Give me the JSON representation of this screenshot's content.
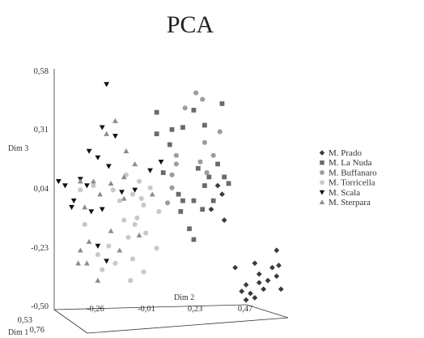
{
  "chart_data": {
    "type": "scatter",
    "title": "PCA",
    "axes": {
      "x": {
        "label": "Dim 2",
        "ticks": [
          "-0,26",
          "-0,01",
          "0,23",
          "0,47"
        ],
        "range": [
          -0.42,
          0.66
        ]
      },
      "y": {
        "label": "Dim 3",
        "ticks": [
          "0,58",
          "0,31",
          "0,04",
          "-0,23",
          "-0,50"
        ],
        "range": [
          -0.5,
          0.62
        ]
      },
      "z": {
        "label": "Dim 1",
        "ticks": [
          "0,53",
          "0,76"
        ]
      }
    },
    "legend_position": "right",
    "grid": false,
    "series": [
      {
        "name": "M. Prado",
        "marker": "diamond",
        "color": "#3a3a3a",
        "points": [
          [
            0.5,
            -0.3
          ],
          [
            0.58,
            -0.32
          ],
          [
            0.52,
            -0.35
          ],
          [
            0.46,
            -0.4
          ],
          [
            0.56,
            -0.38
          ],
          [
            0.6,
            -0.36
          ],
          [
            0.54,
            -0.42
          ],
          [
            0.48,
            -0.44
          ],
          [
            0.61,
            -0.31
          ],
          [
            0.5,
            -0.46
          ],
          [
            0.62,
            -0.42
          ],
          [
            0.44,
            -0.43
          ],
          [
            0.41,
            -0.32
          ],
          [
            0.52,
            -0.39
          ],
          [
            0.35,
            0.02
          ],
          [
            0.3,
            -0.05
          ],
          [
            0.36,
            -0.1
          ],
          [
            0.33,
            0.06
          ],
          [
            0.6,
            -0.24
          ],
          [
            0.46,
            -0.47
          ]
        ]
      },
      {
        "name": "M. La Nuda",
        "marker": "square",
        "color": "#6a6a6a",
        "points": [
          [
            0.05,
            0.4
          ],
          [
            0.05,
            0.3
          ],
          [
            0.08,
            0.12
          ],
          [
            0.11,
            0.25
          ],
          [
            0.12,
            0.32
          ],
          [
            0.17,
            0.33
          ],
          [
            0.22,
            0.41
          ],
          [
            0.27,
            0.34
          ],
          [
            0.35,
            0.44
          ],
          [
            0.33,
            0.16
          ],
          [
            0.29,
            0.1
          ],
          [
            0.24,
            0.14
          ],
          [
            0.27,
            0.06
          ],
          [
            0.22,
            -0.01
          ],
          [
            0.17,
            -0.01
          ],
          [
            0.15,
            0.02
          ],
          [
            0.16,
            -0.06
          ],
          [
            0.2,
            -0.14
          ],
          [
            0.22,
            -0.19
          ],
          [
            0.26,
            -0.05
          ],
          [
            0.31,
            -0.01
          ],
          [
            0.36,
            0.1
          ],
          [
            0.38,
            0.07
          ]
        ]
      },
      {
        "name": "M. Buffanaro",
        "marker": "circle",
        "color": "#9c9c9c",
        "points": [
          [
            0.23,
            0.49
          ],
          [
            0.26,
            0.46
          ],
          [
            0.18,
            0.42
          ],
          [
            0.27,
            0.26
          ],
          [
            0.14,
            0.2
          ],
          [
            0.34,
            0.31
          ],
          [
            0.25,
            0.17
          ],
          [
            0.12,
            0.05
          ],
          [
            0.1,
            -0.02
          ],
          [
            0.12,
            0.11
          ],
          [
            0.14,
            0.16
          ],
          [
            0.31,
            0.2
          ],
          [
            0.28,
            0.12
          ]
        ]
      },
      {
        "name": "M. Torricella",
        "marker": "circle",
        "color": "#c8c8c8",
        "points": [
          [
            0.02,
            0.05
          ],
          [
            -0.03,
            0.08
          ],
          [
            -0.06,
            0.02
          ],
          [
            -0.01,
            -0.03
          ],
          [
            -0.12,
            -0.01
          ],
          [
            -0.15,
            0.04
          ],
          [
            -0.1,
            -0.1
          ],
          [
            -0.05,
            -0.12
          ],
          [
            0.0,
            -0.16
          ],
          [
            -0.08,
            -0.18
          ],
          [
            -0.17,
            -0.22
          ],
          [
            -0.22,
            -0.26
          ],
          [
            -0.14,
            -0.3
          ],
          [
            -0.06,
            -0.28
          ],
          [
            -0.01,
            -0.34
          ],
          [
            -0.07,
            -0.38
          ],
          [
            0.05,
            -0.23
          ],
          [
            -0.24,
            0.06
          ],
          [
            -0.3,
            0.04
          ],
          [
            -0.28,
            -0.12
          ],
          [
            -0.02,
            0.0
          ],
          [
            0.06,
            -0.06
          ],
          [
            -0.09,
            0.11
          ],
          [
            -0.04,
            -0.09
          ],
          [
            -0.2,
            -0.33
          ]
        ]
      },
      {
        "name": "M. Scala",
        "marker": "triangle-down",
        "color": "#111111",
        "points": [
          [
            -0.18,
            0.53
          ],
          [
            -0.2,
            0.33
          ],
          [
            -0.14,
            0.29
          ],
          [
            -0.26,
            0.22
          ],
          [
            -0.22,
            0.19
          ],
          [
            -0.17,
            0.15
          ],
          [
            -0.3,
            0.09
          ],
          [
            -0.37,
            0.06
          ],
          [
            -0.34,
            -0.04
          ],
          [
            -0.25,
            -0.06
          ],
          [
            -0.2,
            -0.05
          ],
          [
            -0.11,
            0.03
          ],
          [
            -0.05,
            0.04
          ],
          [
            0.02,
            0.13
          ],
          [
            0.07,
            0.17
          ],
          [
            -0.22,
            -0.22
          ],
          [
            -0.18,
            -0.29
          ],
          [
            -0.4,
            0.08
          ],
          [
            -0.27,
            0.06
          ],
          [
            -0.33,
            -0.01
          ]
        ]
      },
      {
        "name": "M. Sterpara",
        "marker": "triangle-up",
        "color": "#8c8c8c",
        "points": [
          [
            -0.14,
            0.36
          ],
          [
            -0.18,
            0.3
          ],
          [
            -0.09,
            0.22
          ],
          [
            -0.1,
            0.1
          ],
          [
            -0.16,
            0.07
          ],
          [
            -0.21,
            0.02
          ],
          [
            -0.28,
            -0.04
          ],
          [
            -0.3,
            0.08
          ],
          [
            -0.24,
            0.08
          ],
          [
            -0.05,
            0.16
          ],
          [
            0.03,
            0.02
          ],
          [
            -0.1,
            0.0
          ],
          [
            -0.26,
            -0.2
          ],
          [
            -0.3,
            -0.24
          ],
          [
            -0.27,
            -0.3
          ],
          [
            -0.22,
            -0.38
          ],
          [
            -0.31,
            -0.3
          ],
          [
            -0.16,
            -0.15
          ],
          [
            -0.12,
            -0.24
          ],
          [
            -0.03,
            -0.17
          ]
        ]
      }
    ]
  }
}
